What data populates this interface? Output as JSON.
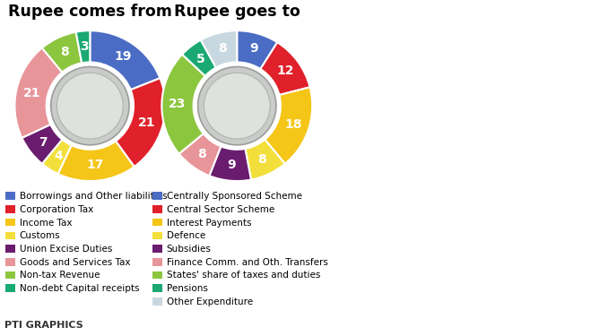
{
  "chart_data": [
    {
      "type": "pie",
      "title": "Rupee comes from",
      "categories": [
        "Borrowings and Other liabilities",
        "Corporation Tax",
        "Income Tax",
        "Customs",
        "Union Excise Duties",
        "Goods and Services Tax",
        "Non-tax Revenue",
        "Non-debt Capital receipts"
      ],
      "values": [
        19,
        21,
        17,
        4,
        7,
        21,
        8,
        3
      ],
      "colors": [
        "#4a6cc4",
        "#e0202a",
        "#f5c518",
        "#f2df3c",
        "#6a1d6e",
        "#e8959a",
        "#8cc63f",
        "#1aa873"
      ],
      "data_labels": true
    },
    {
      "type": "pie",
      "title": "Rupee goes to",
      "categories": [
        "Centrally Sponsored Scheme",
        "Central Sector Scheme",
        "Interest Payments",
        "Defence",
        "Subsidies",
        "Finance Comm. and Oth. Transfers",
        "States' share of taxes and duties",
        "Pensions",
        "Other Expenditure"
      ],
      "values": [
        9,
        12,
        18,
        8,
        9,
        8,
        23,
        5,
        8
      ],
      "colors": [
        "#4a6cc4",
        "#e0202a",
        "#f5c518",
        "#f2df3c",
        "#6a1d6e",
        "#e8959a",
        "#8cc63f",
        "#1aa873",
        "#c8d8e0"
      ],
      "data_labels": true
    }
  ],
  "source": "PTI GRAPHICS"
}
